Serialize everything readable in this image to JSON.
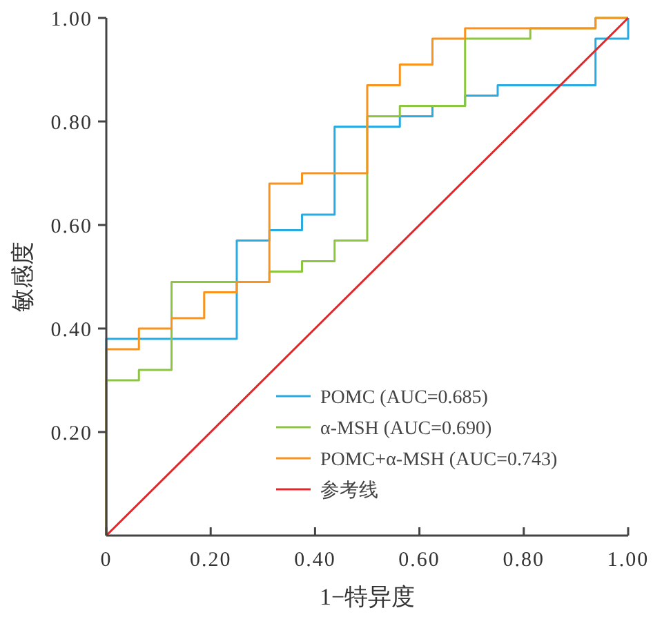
{
  "chart_data": {
    "type": "step",
    "xlabel": "1−特异度",
    "ylabel": "敏感度",
    "xlim": [
      0,
      1
    ],
    "ylim": [
      0,
      1
    ],
    "xticks": [
      0,
      {
        "value": 0.2,
        "label": "0.20"
      },
      {
        "value": 0.4,
        "label": "0.40"
      },
      {
        "value": 0.6,
        "label": "0.60"
      },
      {
        "value": 0.8,
        "label": "0.80"
      },
      {
        "value": 1,
        "label": "1.00"
      }
    ],
    "yticks": [
      {
        "value": 0.2,
        "label": "0.20"
      },
      {
        "value": 0.4,
        "label": "0.40"
      },
      {
        "value": 0.6,
        "label": "0.60"
      },
      {
        "value": 0.8,
        "label": "0.80"
      },
      {
        "value": 1,
        "label": "1.00"
      }
    ],
    "grid": false,
    "legend": "bottom right",
    "marker": "none",
    "series": [
      {
        "name": "POMC (AUC=0.685)",
        "color": "#29abe2",
        "x": [
          0,
          0,
          0.25,
          0.3125,
          0.375,
          0.4375,
          0.5625,
          0.625,
          0.6875,
          0.75,
          0.9375,
          1
        ],
        "values": [
          0,
          0.38,
          0.57,
          0.59,
          0.62,
          0.79,
          0.81,
          0.83,
          0.85,
          0.87,
          0.96,
          1
        ]
      },
      {
        "name": "α-MSH (AUC=0.690)",
        "color": "#8cc63f",
        "x": [
          0,
          0,
          0.0625,
          0.125,
          0.3125,
          0.375,
          0.4375,
          0.5,
          0.5625,
          0.6875,
          0.8125,
          0.9375,
          1
        ],
        "values": [
          0,
          0.3,
          0.32,
          0.49,
          0.51,
          0.53,
          0.57,
          0.81,
          0.83,
          0.96,
          0.98,
          1,
          1
        ]
      },
      {
        "name": "POMC+α-MSH (AUC=0.743)",
        "color": "#f7931e",
        "x": [
          0,
          0,
          0.0625,
          0.125,
          0.1875,
          0.25,
          0.3125,
          0.375,
          0.5,
          0.5625,
          0.625,
          0.6875,
          0.9375,
          1
        ],
        "values": [
          0,
          0.36,
          0.4,
          0.42,
          0.47,
          0.49,
          0.68,
          0.7,
          0.87,
          0.91,
          0.96,
          0.98,
          1,
          1
        ]
      },
      {
        "name": "参考线",
        "type": "line",
        "color": "#e0282b",
        "x": [
          0,
          1
        ],
        "values": [
          0,
          1
        ]
      }
    ]
  }
}
